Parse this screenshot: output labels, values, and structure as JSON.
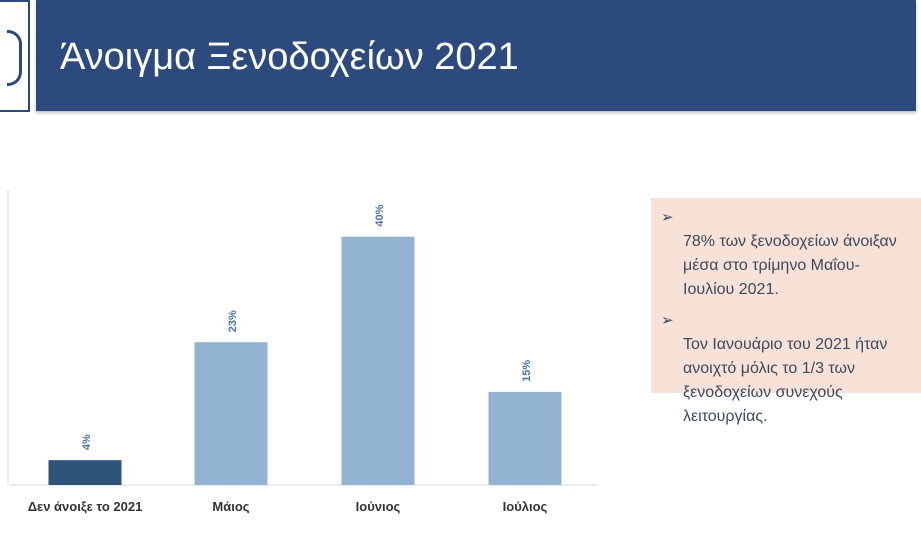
{
  "slide": {
    "title": "Άνοιγμα Ξενοδοχείων 2021"
  },
  "notes": {
    "items": [
      {
        "text": "78% των ξενοδοχείων άνοιξαν\nμέσα στο τρίμηνο Μαΐου-\nΙουλίου 2021."
      },
      {
        "text": "Τον Ιανουάριο του 2021 ήταν\nανοιχτό μόλις το 1/3 των\nξενοδοχείων συνεχούς\nλειτουργίας."
      }
    ],
    "bullet_icon": "arrow-bullet-icon"
  },
  "chart_data": {
    "type": "bar",
    "categories": [
      "Δεν άνοιξε το 2021",
      "Μάιος",
      "Ιούνιος",
      "Ιούλιος"
    ],
    "values": [
      4,
      23,
      40,
      15
    ],
    "value_labels": [
      "4%",
      "23%",
      "40%",
      "15%"
    ],
    "colors": [
      "#2f5479",
      "#93b3d3",
      "#93b3d3",
      "#93b3d3"
    ],
    "label_color": "#4a73a8",
    "ylim": [
      0,
      48
    ],
    "grid": false,
    "legend": "none"
  }
}
